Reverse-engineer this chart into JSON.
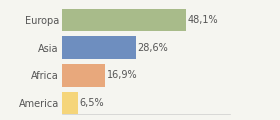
{
  "categories": [
    "Europa",
    "Asia",
    "Africa",
    "America"
  ],
  "values": [
    48.1,
    28.6,
    16.9,
    6.5
  ],
  "labels": [
    "48,1%",
    "28,6%",
    "16,9%",
    "6,5%"
  ],
  "bar_colors": [
    "#a8bb8a",
    "#6e8ebf",
    "#e8a87c",
    "#f5d57a"
  ],
  "background_color": "#f5f5f0",
  "xlim": [
    0,
    65
  ],
  "label_fontsize": 7.0,
  "tick_fontsize": 7.0,
  "bar_height": 0.82
}
